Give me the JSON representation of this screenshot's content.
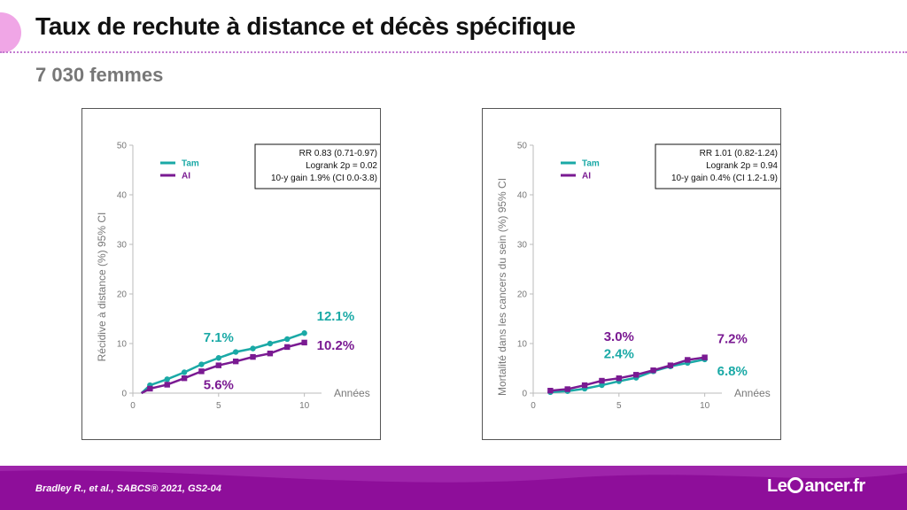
{
  "header": {
    "title": "Taux de rechute à distance et décès spécifique",
    "subtitle": "7 030 femmes"
  },
  "footer": {
    "citation": "Bradley R., et al., SABCS® 2021, GS2-04",
    "logo_pre": "Le",
    "logo_post": "ancer.fr"
  },
  "colors": {
    "tam": "#1aa9a6",
    "ai": "#7a1a92",
    "accent": "#f0a6e6",
    "footer": "#8e0e9a"
  },
  "chart_data": [
    {
      "type": "line",
      "xlabel": "Années",
      "ylabel": "Récidive à distance (%) 95% CI",
      "xlim": [
        0,
        11
      ],
      "ylim": [
        0,
        50
      ],
      "xticks": [
        "0",
        "5",
        "10"
      ],
      "yticks": [
        "0",
        "10",
        "20",
        "30",
        "40",
        "50"
      ],
      "grid": false,
      "legend": "top-left",
      "stats": [
        "RR 0.83 (0.71-0.97)",
        "Logrank 2p = 0.02",
        "10-y gain 1.9% (CI 0.0-3.8)"
      ],
      "series": [
        {
          "name": "Tam",
          "marker": "circle",
          "x": [
            0.5,
            1,
            2,
            3,
            4,
            5,
            6,
            7,
            8,
            9,
            10
          ],
          "values": [
            0,
            1.6,
            2.8,
            4.2,
            5.8,
            7.1,
            8.3,
            9.0,
            10.0,
            10.9,
            12.1
          ]
        },
        {
          "name": "AI",
          "marker": "square",
          "x": [
            0.5,
            1,
            2,
            3,
            4,
            5,
            6,
            7,
            8,
            9,
            10
          ],
          "values": [
            0,
            0.9,
            1.7,
            3.0,
            4.4,
            5.6,
            6.4,
            7.3,
            8.0,
            9.3,
            10.2
          ]
        }
      ],
      "annotations": [
        {
          "text": "12.1%",
          "series": "Tam",
          "x": 10,
          "y": 12.1,
          "pos": "right-above"
        },
        {
          "text": "10.2%",
          "series": "AI",
          "x": 10,
          "y": 10.2,
          "pos": "right-below"
        },
        {
          "text": "7.1%",
          "series": "Tam",
          "x": 5,
          "y": 7.1,
          "pos": "above"
        },
        {
          "text": "5.6%",
          "series": "AI",
          "x": 5,
          "y": 5.6,
          "pos": "below"
        }
      ]
    },
    {
      "type": "line",
      "xlabel": "Années",
      "ylabel": "Mortalité dans les cancers du sein (%) 95% CI",
      "xlim": [
        0,
        11
      ],
      "ylim": [
        0,
        50
      ],
      "xticks": [
        "0",
        "5",
        "10"
      ],
      "yticks": [
        "0",
        "10",
        "20",
        "30",
        "40",
        "50"
      ],
      "grid": false,
      "legend": "top-left",
      "stats": [
        "RR 1.01 (0.82-1.24)",
        "Logrank 2p = 0.94",
        "10-y gain 0.4% (CI 1.2-1.9)"
      ],
      "series": [
        {
          "name": "Tam",
          "marker": "circle",
          "x": [
            1,
            2,
            3,
            4,
            5,
            6,
            7,
            8,
            9,
            10
          ],
          "values": [
            0.2,
            0.4,
            0.9,
            1.6,
            2.4,
            3.1,
            4.4,
            5.4,
            6.1,
            6.8
          ]
        },
        {
          "name": "AI",
          "marker": "square",
          "x": [
            1,
            2,
            3,
            4,
            5,
            6,
            7,
            8,
            9,
            10
          ],
          "values": [
            0.5,
            0.8,
            1.6,
            2.5,
            3.0,
            3.7,
            4.6,
            5.6,
            6.7,
            7.2
          ]
        }
      ],
      "annotations": [
        {
          "text": "3.0%",
          "series": "AI",
          "x": 5,
          "y": 3.0,
          "pos": "above-high"
        },
        {
          "text": "2.4%",
          "series": "Tam",
          "x": 5,
          "y": 2.4,
          "pos": "above"
        },
        {
          "text": "7.2%",
          "series": "AI",
          "x": 10,
          "y": 7.2,
          "pos": "right-above"
        },
        {
          "text": "6.8%",
          "series": "Tam",
          "x": 10,
          "y": 6.8,
          "pos": "right-below"
        }
      ]
    }
  ]
}
